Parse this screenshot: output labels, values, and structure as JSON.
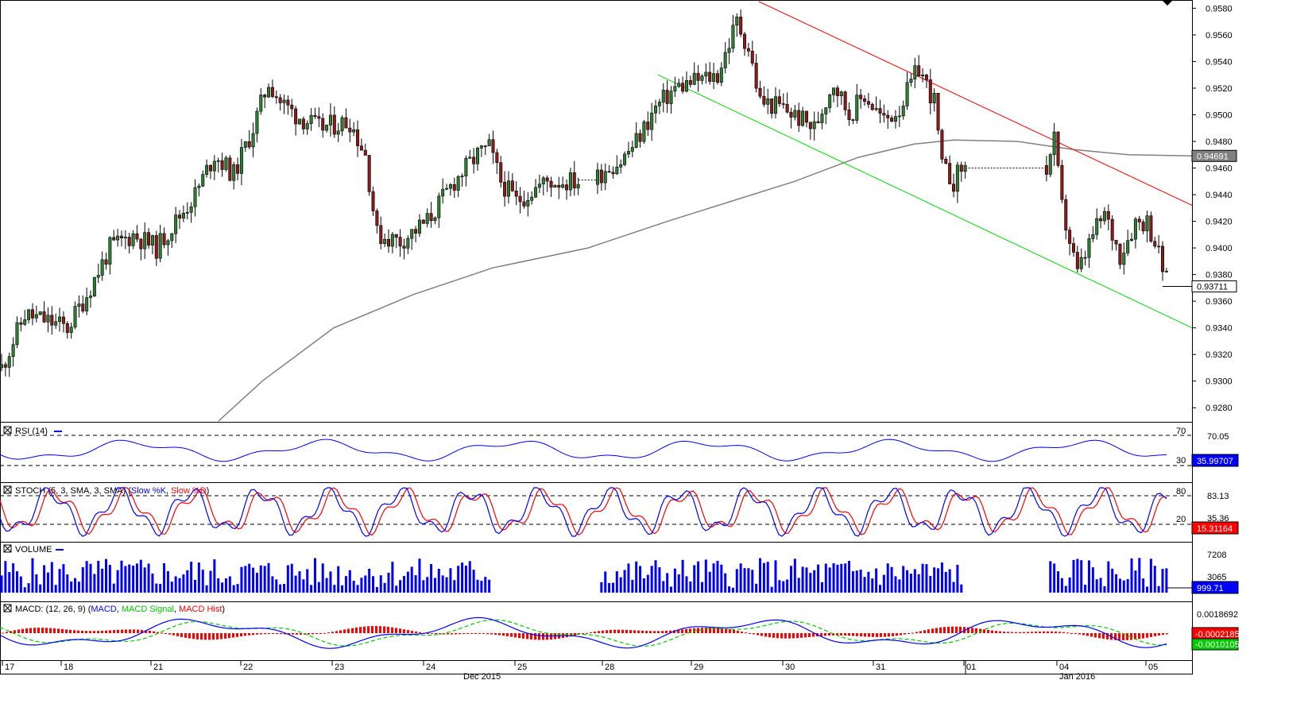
{
  "chart_data": {
    "type": "candlestick",
    "instrument_panels": [
      "main",
      "rsi",
      "stoch",
      "volume",
      "macd"
    ],
    "main": {
      "ylim": [
        0.927,
        0.9585
      ],
      "y_ticks": [
        "0.9580",
        "0.9560",
        "0.9540",
        "0.9520",
        "0.9500",
        "0.9480",
        "0.9460",
        "0.9440",
        "0.9420",
        "0.9400",
        "0.9380",
        "0.9360",
        "0.9340",
        "0.9320",
        "0.9300",
        "0.9280"
      ],
      "last_price_label": "0.93711",
      "last_price": 0.93711,
      "sma_label": "0.94691",
      "sma_value": 0.94691,
      "resistance_line": {
        "start": 0.9585,
        "end": 0.9432
      },
      "support_line": {
        "start": 0.953,
        "end": 0.934
      }
    },
    "rsi": {
      "title": "RSI (14)",
      "levels": [
        "70",
        "30"
      ],
      "axis_label": "70.05",
      "value_label": "35.99707"
    },
    "stoch": {
      "title_prefix": "STOCH (5, 3, SMA, 3, SMA) (",
      "k_label": "Slow %K",
      "sep": ", ",
      "d_label": "Slow %D",
      "title_suffix": ")",
      "levels": [
        "80",
        "20"
      ],
      "axis_labels": [
        "83.13",
        "35.36"
      ],
      "value_label": "15.31164"
    },
    "volume": {
      "title": "VOLUME",
      "axis_labels": [
        "7208",
        "3065"
      ],
      "value_label": "999.71"
    },
    "macd": {
      "title_prefix": "MACD: (12, 26, 9) (",
      "macd_label": "MACD",
      "sep": ", ",
      "signal_label": "MACD Signal",
      "hist_label": "MACD Hist",
      "title_suffix": ")",
      "axis_label": "0.0018692",
      "value_labels": [
        "-0.0002185",
        "-0.0010105"
      ]
    },
    "x_labels": [
      {
        "text": "17"
      },
      {
        "text": "18"
      },
      {
        "text": "21"
      },
      {
        "text": "22"
      },
      {
        "text": "23"
      },
      {
        "text": "24"
      },
      {
        "text": "25"
      },
      {
        "text": "28"
      },
      {
        "text": "29"
      },
      {
        "text": "30"
      },
      {
        "text": "31"
      },
      {
        "text": "01"
      },
      {
        "text": "04"
      },
      {
        "text": "05"
      }
    ],
    "month_labels": [
      {
        "text": "Dec 2015"
      },
      {
        "text": "Jan 2016"
      }
    ],
    "colors": {
      "up": "#2e7d32",
      "down": "#8b1a1a",
      "resistance": "#ff0000",
      "support": "#00dd00",
      "sma": "#808080",
      "rsi": "#0000ff",
      "stoch_k": "#0000ff",
      "stoch_d": "#ff0000",
      "volume": "#0000ff",
      "macd": "#0000ff",
      "signal": "#00cc00",
      "hist": "#ff0000"
    }
  }
}
